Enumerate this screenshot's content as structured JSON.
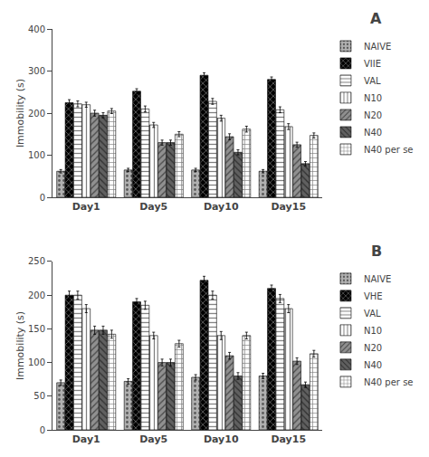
{
  "chart_data": [
    {
      "type": "bar",
      "title": "A",
      "ylabel": "Immobility (s)",
      "categories": [
        "Day1",
        "Day5",
        "Day10",
        "Day15"
      ],
      "series": [
        {
          "name": "NAIVE",
          "color": "#b0b0b0",
          "values": [
            62,
            65,
            65,
            62
          ],
          "errors": [
            4,
            4,
            4,
            4
          ]
        },
        {
          "name": "VIIE",
          "color": "#000000",
          "values": [
            225,
            252,
            290,
            280
          ],
          "errors": [
            7,
            6,
            6,
            6
          ]
        },
        {
          "name": "VAL",
          "color": "#ffffff",
          "values": [
            222,
            210,
            228,
            208
          ],
          "errors": [
            7,
            7,
            7,
            7
          ]
        },
        {
          "name": "N10",
          "color": "#ffffff",
          "values": [
            220,
            172,
            188,
            168
          ],
          "errors": [
            6,
            6,
            7,
            7
          ]
        },
        {
          "name": "N20",
          "color": "#909090",
          "values": [
            200,
            130,
            144,
            125
          ],
          "errors": [
            7,
            6,
            7,
            6
          ]
        },
        {
          "name": "N40",
          "color": "#606060",
          "values": [
            195,
            130,
            107,
            80
          ],
          "errors": [
            6,
            6,
            6,
            5
          ]
        },
        {
          "name": "N40 per se",
          "color": "#ffffff",
          "values": [
            205,
            150,
            162,
            147
          ],
          "errors": [
            6,
            6,
            7,
            6
          ]
        }
      ],
      "ylim": [
        0,
        400
      ],
      "yticks": [
        0,
        100,
        200,
        300,
        400
      ],
      "grid": false,
      "legend": "right"
    },
    {
      "type": "bar",
      "title": "B",
      "ylabel": "Immobility (s)",
      "categories": [
        "Day1",
        "Day5",
        "Day10",
        "Day15"
      ],
      "series": [
        {
          "name": "NAIVE",
          "color": "#b0b0b0",
          "values": [
            70,
            72,
            78,
            80
          ],
          "errors": [
            4,
            4,
            4,
            4
          ]
        },
        {
          "name": "VHE",
          "color": "#000000",
          "values": [
            200,
            190,
            222,
            210
          ],
          "errors": [
            6,
            5,
            6,
            5
          ]
        },
        {
          "name": "VAL",
          "color": "#ffffff",
          "values": [
            200,
            185,
            200,
            195
          ],
          "errors": [
            6,
            6,
            6,
            6
          ]
        },
        {
          "name": "N10",
          "color": "#ffffff",
          "values": [
            180,
            140,
            140,
            180
          ],
          "errors": [
            6,
            5,
            6,
            6
          ]
        },
        {
          "name": "N20",
          "color": "#909090",
          "values": [
            148,
            100,
            110,
            102
          ],
          "errors": [
            6,
            5,
            5,
            5
          ]
        },
        {
          "name": "N40",
          "color": "#606060",
          "values": [
            148,
            100,
            80,
            67
          ],
          "errors": [
            6,
            5,
            5,
            4
          ]
        },
        {
          "name": "N40 per se",
          "color": "#ffffff",
          "values": [
            142,
            128,
            140,
            113
          ],
          "errors": [
            6,
            5,
            5,
            5
          ]
        }
      ],
      "ylim": [
        0,
        250
      ],
      "yticks": [
        0,
        50,
        100,
        150,
        200,
        250
      ],
      "grid": false,
      "legend": "right"
    }
  ]
}
